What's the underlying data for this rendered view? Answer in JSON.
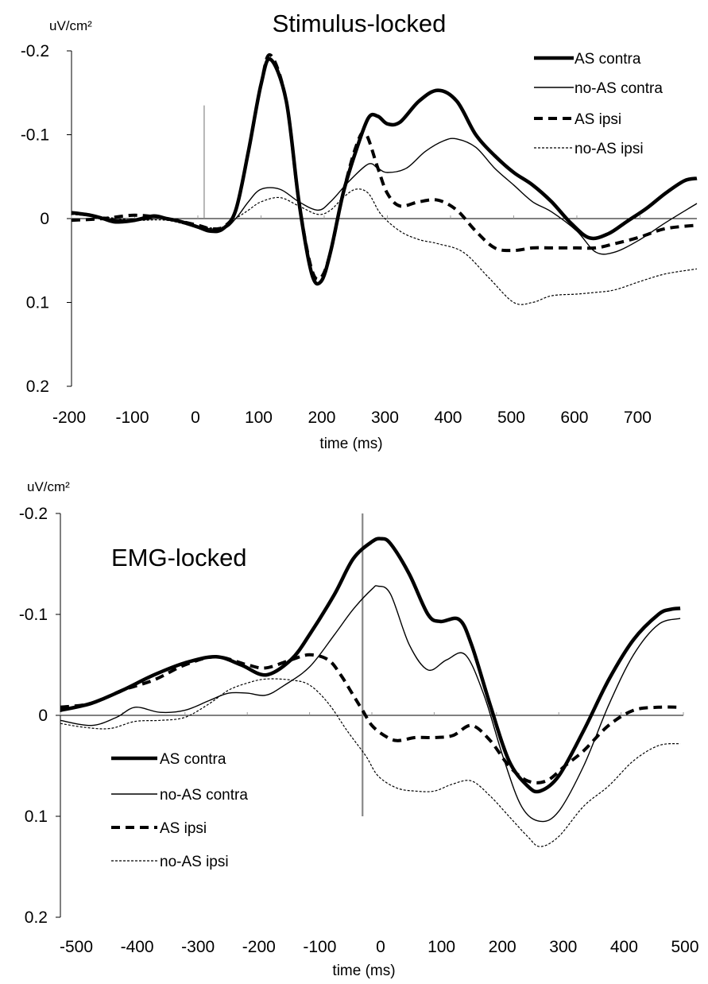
{
  "chart_data": [
    {
      "type": "line",
      "title": "Stimulus-locked",
      "unit": "uV/cm²",
      "xlabel": "time (ms)",
      "ylabel": "",
      "xlim": [
        -200,
        790
      ],
      "ylim": [
        -0.2,
        0.2
      ],
      "y_inverted": true,
      "x_ticks": [
        -200,
        -100,
        0,
        100,
        200,
        300,
        400,
        500,
        600,
        700
      ],
      "x_tick_labels": [
        "-200",
        "-100",
        "0",
        "100",
        "200",
        "300",
        "400",
        "500",
        "600",
        "700"
      ],
      "y_ticks": [
        -0.2,
        -0.1,
        0,
        0.1,
        0.2
      ],
      "y_tick_labels": [
        "-0.2",
        "-0.1",
        "0",
        "0.1",
        "0.2"
      ],
      "marker_line_x": 10,
      "legend_position": "top-right",
      "series": [
        {
          "name": "AS contra",
          "style": "thick-solid",
          "x": [
            -200,
            -170,
            -150,
            -130,
            -100,
            -70,
            -50,
            -30,
            0,
            20,
            40,
            60,
            80,
            100,
            115,
            140,
            160,
            180,
            195,
            210,
            230,
            250,
            270,
            285,
            300,
            320,
            350,
            380,
            410,
            440,
            470,
            500,
            530,
            560,
            590,
            620,
            650,
            680,
            710,
            740,
            770,
            790
          ],
          "y": [
            -0.007,
            -0.004,
            0.0,
            0.004,
            0.002,
            -0.003,
            0.0,
            0.003,
            0.01,
            0.015,
            0.012,
            -0.01,
            -0.08,
            -0.16,
            -0.19,
            -0.14,
            -0.02,
            0.065,
            0.075,
            0.04,
            -0.03,
            -0.08,
            -0.12,
            -0.122,
            -0.113,
            -0.115,
            -0.14,
            -0.153,
            -0.14,
            -0.1,
            -0.075,
            -0.055,
            -0.04,
            -0.02,
            0.005,
            0.023,
            0.018,
            0.003,
            -0.012,
            -0.03,
            -0.045,
            -0.048
          ]
        },
        {
          "name": "no-AS contra",
          "style": "thin-solid",
          "x": [
            -200,
            -170,
            -150,
            -100,
            -50,
            0,
            40,
            60,
            80,
            100,
            130,
            160,
            190,
            210,
            240,
            270,
            285,
            300,
            330,
            360,
            390,
            410,
            440,
            470,
            500,
            530,
            560,
            600,
            630,
            660,
            700,
            740,
            790
          ],
          "y": [
            -0.007,
            -0.004,
            0.0,
            0.002,
            0.0,
            0.01,
            0.012,
            0.0,
            -0.02,
            -0.035,
            -0.035,
            -0.02,
            -0.01,
            -0.02,
            -0.045,
            -0.065,
            -0.06,
            -0.055,
            -0.06,
            -0.08,
            -0.093,
            -0.095,
            -0.085,
            -0.06,
            -0.04,
            -0.02,
            -0.008,
            0.015,
            0.04,
            0.04,
            0.025,
            0.005,
            -0.018
          ]
        },
        {
          "name": "AS ipsi",
          "style": "thick-dashed",
          "x": [
            -200,
            -150,
            -100,
            -50,
            0,
            20,
            40,
            60,
            80,
            100,
            115,
            140,
            160,
            180,
            195,
            210,
            230,
            250,
            265,
            285,
            300,
            320,
            350,
            380,
            410,
            440,
            470,
            500,
            530,
            560,
            600,
            630,
            660,
            700,
            740,
            790
          ],
          "y": [
            0.002,
            0.0,
            -0.004,
            0.0,
            0.008,
            0.012,
            0.01,
            -0.01,
            -0.08,
            -0.16,
            -0.195,
            -0.14,
            -0.02,
            0.06,
            0.07,
            0.04,
            -0.03,
            -0.085,
            -0.102,
            -0.06,
            -0.03,
            -0.015,
            -0.02,
            -0.022,
            -0.01,
            0.015,
            0.035,
            0.038,
            0.035,
            0.035,
            0.035,
            0.035,
            0.03,
            0.022,
            0.012,
            0.008
          ]
        },
        {
          "name": "no-AS ipsi",
          "style": "dotted",
          "x": [
            -200,
            -150,
            -100,
            -50,
            0,
            40,
            60,
            80,
            100,
            130,
            160,
            190,
            210,
            230,
            250,
            270,
            290,
            320,
            350,
            380,
            420,
            460,
            500,
            530,
            560,
            600,
            630,
            660,
            700,
            740,
            790
          ],
          "y": [
            -0.005,
            -0.002,
            0.002,
            0.002,
            0.01,
            0.01,
            0.0,
            -0.01,
            -0.02,
            -0.025,
            -0.015,
            -0.005,
            -0.01,
            -0.025,
            -0.035,
            -0.03,
            -0.005,
            0.015,
            0.025,
            0.03,
            0.04,
            0.07,
            0.1,
            0.1,
            0.092,
            0.09,
            0.088,
            0.085,
            0.075,
            0.066,
            0.06
          ]
        }
      ]
    },
    {
      "type": "line",
      "title": "EMG-locked",
      "unit": "uV/cm²",
      "xlabel": "time (ms)",
      "ylabel": "",
      "xlim": [
        -500,
        500
      ],
      "ylim": [
        -0.2,
        0.2
      ],
      "y_inverted": true,
      "x_ticks": [
        -500,
        -400,
        -300,
        -200,
        -100,
        0,
        100,
        200,
        300,
        400,
        500
      ],
      "x_tick_labels": [
        "-500",
        "-400",
        "-300",
        "-200",
        "-100",
        "0",
        "100",
        "200",
        "300",
        "400",
        "500"
      ],
      "y_ticks": [
        -0.2,
        -0.1,
        0,
        0.1,
        0.2
      ],
      "y_tick_labels": [
        "-0.2",
        "-0.1",
        "0",
        "0.1",
        "0.2"
      ],
      "marker_line_x": -15,
      "legend_position": "bottom-left",
      "series": [
        {
          "name": "AS contra",
          "style": "thick-solid",
          "x": [
            -500,
            -450,
            -400,
            -350,
            -300,
            -250,
            -210,
            -170,
            -130,
            -100,
            -60,
            -30,
            0,
            15,
            30,
            60,
            90,
            110,
            140,
            160,
            190,
            220,
            250,
            270,
            300,
            340,
            380,
            420,
            460,
            480,
            495
          ],
          "y": [
            -0.005,
            -0.012,
            -0.025,
            -0.04,
            -0.052,
            -0.058,
            -0.05,
            -0.04,
            -0.055,
            -0.08,
            -0.12,
            -0.155,
            -0.172,
            -0.175,
            -0.17,
            -0.14,
            -0.1,
            -0.093,
            -0.095,
            -0.07,
            -0.01,
            0.045,
            0.07,
            0.075,
            0.06,
            0.015,
            -0.035,
            -0.075,
            -0.1,
            -0.105,
            -0.106
          ]
        },
        {
          "name": "no-AS contra",
          "style": "thin-solid",
          "x": [
            -500,
            -450,
            -410,
            -380,
            -340,
            -300,
            -260,
            -230,
            -200,
            -170,
            -140,
            -100,
            -60,
            -30,
            0,
            10,
            30,
            60,
            90,
            120,
            150,
            180,
            210,
            240,
            270,
            300,
            340,
            380,
            420,
            460,
            495
          ],
          "y": [
            0.005,
            0.01,
            0.002,
            -0.008,
            -0.003,
            -0.005,
            -0.015,
            -0.022,
            -0.022,
            -0.02,
            -0.03,
            -0.048,
            -0.08,
            -0.105,
            -0.125,
            -0.128,
            -0.12,
            -0.07,
            -0.045,
            -0.055,
            -0.06,
            -0.02,
            0.04,
            0.09,
            0.105,
            0.095,
            0.05,
            -0.01,
            -0.06,
            -0.09,
            -0.096
          ]
        },
        {
          "name": "AS ipsi",
          "style": "thick-dashed",
          "x": [
            -500,
            -450,
            -400,
            -350,
            -300,
            -250,
            -200,
            -170,
            -130,
            -100,
            -70,
            -50,
            -30,
            -15,
            0,
            20,
            40,
            70,
            100,
            130,
            160,
            190,
            220,
            250,
            280,
            310,
            340,
            380,
            420,
            460,
            495
          ],
          "y": [
            -0.008,
            -0.012,
            -0.025,
            -0.035,
            -0.05,
            -0.058,
            -0.05,
            -0.047,
            -0.055,
            -0.06,
            -0.055,
            -0.04,
            -0.02,
            -0.005,
            0.01,
            0.02,
            0.025,
            0.022,
            0.022,
            0.02,
            0.01,
            0.025,
            0.05,
            0.065,
            0.065,
            0.05,
            0.035,
            0.01,
            -0.005,
            -0.008,
            -0.008
          ]
        },
        {
          "name": "no-AS ipsi",
          "style": "dotted",
          "x": [
            -500,
            -460,
            -420,
            -380,
            -340,
            -300,
            -260,
            -230,
            -200,
            -170,
            -130,
            -100,
            -70,
            -40,
            -10,
            10,
            40,
            70,
            100,
            130,
            160,
            190,
            220,
            250,
            270,
            300,
            340,
            380,
            420,
            460,
            495
          ],
          "y": [
            0.008,
            0.012,
            0.013,
            0.006,
            0.005,
            0.002,
            -0.012,
            -0.025,
            -0.032,
            -0.036,
            -0.035,
            -0.03,
            -0.012,
            0.015,
            0.04,
            0.06,
            0.072,
            0.075,
            0.075,
            0.068,
            0.065,
            0.08,
            0.1,
            0.12,
            0.13,
            0.12,
            0.09,
            0.07,
            0.045,
            0.03,
            0.028
          ]
        }
      ]
    }
  ]
}
